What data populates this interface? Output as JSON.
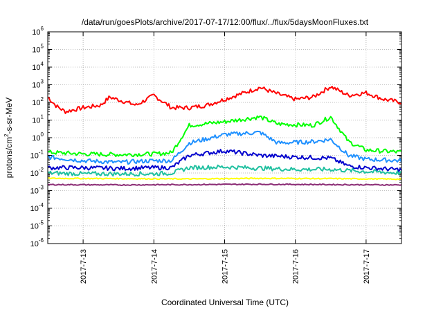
{
  "chart_data": {
    "type": "line",
    "title": "/data/run/goesPlots/archive/2017-07-17/12:00/flux/../flux/5daysMoonFluxes.txt",
    "xlabel": "Coordinated Universal Time (UTC)",
    "ylabel": {
      "base": "protons/cm",
      "sup": "2",
      "rest": "-s-sr-MeV"
    },
    "yscale": "log",
    "ylim": [
      1e-06,
      1000000.0
    ],
    "yticks": [
      {
        "v": -6,
        "m": "10",
        "e": "-6"
      },
      {
        "v": -5,
        "m": "10",
        "e": "-5"
      },
      {
        "v": -4,
        "m": "10",
        "e": "-4"
      },
      {
        "v": -3,
        "m": "10",
        "e": "-3"
      },
      {
        "v": -2,
        "m": "10",
        "e": "-2"
      },
      {
        "v": -1,
        "m": "10",
        "e": "-1"
      },
      {
        "v": 0,
        "m": "10",
        "e": "0"
      },
      {
        "v": 1,
        "m": "10",
        "e": "1"
      },
      {
        "v": 2,
        "m": "10",
        "e": "2"
      },
      {
        "v": 3,
        "m": "10",
        "e": "3"
      },
      {
        "v": 4,
        "m": "10",
        "e": "4"
      },
      {
        "v": 5,
        "m": "10",
        "e": "5"
      },
      {
        "v": 6,
        "m": "10",
        "e": "6"
      }
    ],
    "xlim": [
      "2017-07-12 12:00",
      "2017-07-17 12:00"
    ],
    "xticks": [
      "2017-7-13",
      "2017-7-14",
      "2017-7-15",
      "2017-7-16",
      "2017-7-17"
    ],
    "grid": true,
    "series": [
      {
        "color": "#ff0000",
        "x": [
          "2017-07-12 12:00",
          "2017-07-12 15:00",
          "2017-07-12 18:00",
          "2017-07-13 00:00",
          "2017-07-13 06:00",
          "2017-07-13 09:00",
          "2017-07-13 18:00",
          "2017-07-14 00:00",
          "2017-07-14 06:00",
          "2017-07-14 12:00",
          "2017-07-14 18:00",
          "2017-07-15 00:00",
          "2017-07-15 12:00",
          "2017-07-15 18:00",
          "2017-07-16 00:00",
          "2017-07-16 06:00",
          "2017-07-16 12:00",
          "2017-07-16 18:00",
          "2017-07-17 00:00",
          "2017-07-17 06:00",
          "2017-07-17 12:00"
        ],
        "y": [
          200,
          60,
          30,
          50,
          70,
          200,
          70,
          250,
          50,
          50,
          70,
          150,
          700,
          300,
          150,
          200,
          800,
          250,
          350,
          150,
          100
        ]
      },
      {
        "color": "#00ff00",
        "x": [
          "2017-07-12 12:00",
          "2017-07-13 00:00",
          "2017-07-13 12:00",
          "2017-07-14 00:00",
          "2017-07-14 06:00",
          "2017-07-14 12:00",
          "2017-07-15 00:00",
          "2017-07-15 12:00",
          "2017-07-15 18:00",
          "2017-07-16 06:00",
          "2017-07-16 12:00",
          "2017-07-16 18:00",
          "2017-07-17 00:00",
          "2017-07-17 12:00"
        ],
        "y": [
          0.15,
          0.12,
          0.11,
          0.12,
          0.14,
          5,
          8,
          15,
          6,
          5,
          15,
          0.6,
          0.2,
          0.15
        ]
      },
      {
        "color": "#1e90ff",
        "x": [
          "2017-07-12 12:00",
          "2017-07-13 00:00",
          "2017-07-13 12:00",
          "2017-07-14 00:00",
          "2017-07-14 06:00",
          "2017-07-14 12:00",
          "2017-07-15 00:00",
          "2017-07-15 12:00",
          "2017-07-15 18:00",
          "2017-07-16 06:00",
          "2017-07-16 12:00",
          "2017-07-16 18:00",
          "2017-07-17 00:00",
          "2017-07-17 12:00"
        ],
        "y": [
          0.08,
          0.05,
          0.04,
          0.05,
          0.05,
          0.5,
          1.5,
          2,
          0.5,
          0.6,
          0.8,
          0.1,
          0.06,
          0.05
        ]
      },
      {
        "color": "#0000cd",
        "x": [
          "2017-07-12 12:00",
          "2017-07-13 00:00",
          "2017-07-13 12:00",
          "2017-07-14 00:00",
          "2017-07-14 06:00",
          "2017-07-14 12:00",
          "2017-07-15 00:00",
          "2017-07-15 12:00",
          "2017-07-16 00:00",
          "2017-07-16 12:00",
          "2017-07-16 18:00",
          "2017-07-17 00:00",
          "2017-07-17 12:00"
        ],
        "y": [
          0.02,
          0.02,
          0.018,
          0.02,
          0.02,
          0.1,
          0.18,
          0.1,
          0.08,
          0.07,
          0.025,
          0.02,
          0.015
        ]
      },
      {
        "color": "#20c0a0",
        "x": [
          "2017-07-12 12:00",
          "2017-07-13 00:00",
          "2017-07-14 00:00",
          "2017-07-14 06:00",
          "2017-07-14 12:00",
          "2017-07-15 00:00",
          "2017-07-16 00:00",
          "2017-07-16 12:00",
          "2017-07-17 00:00",
          "2017-07-17 12:00"
        ],
        "y": [
          0.01,
          0.009,
          0.009,
          0.01,
          0.02,
          0.022,
          0.016,
          0.016,
          0.012,
          0.01
        ]
      },
      {
        "color": "#ffff00",
        "x": [
          "2017-07-12 12:00",
          "2017-07-13 12:00",
          "2017-07-14 12:00",
          "2017-07-15 12:00",
          "2017-07-16 12:00",
          "2017-07-17 12:00"
        ],
        "y": [
          0.005,
          0.0048,
          0.0046,
          0.005,
          0.0048,
          0.0045
        ]
      },
      {
        "color": "#8b2c75",
        "x": [
          "2017-07-12 12:00",
          "2017-07-13 12:00",
          "2017-07-14 12:00",
          "2017-07-15 12:00",
          "2017-07-16 12:00",
          "2017-07-17 12:00"
        ],
        "y": [
          0.0022,
          0.0021,
          0.0022,
          0.0023,
          0.0022,
          0.0021
        ]
      }
    ]
  }
}
